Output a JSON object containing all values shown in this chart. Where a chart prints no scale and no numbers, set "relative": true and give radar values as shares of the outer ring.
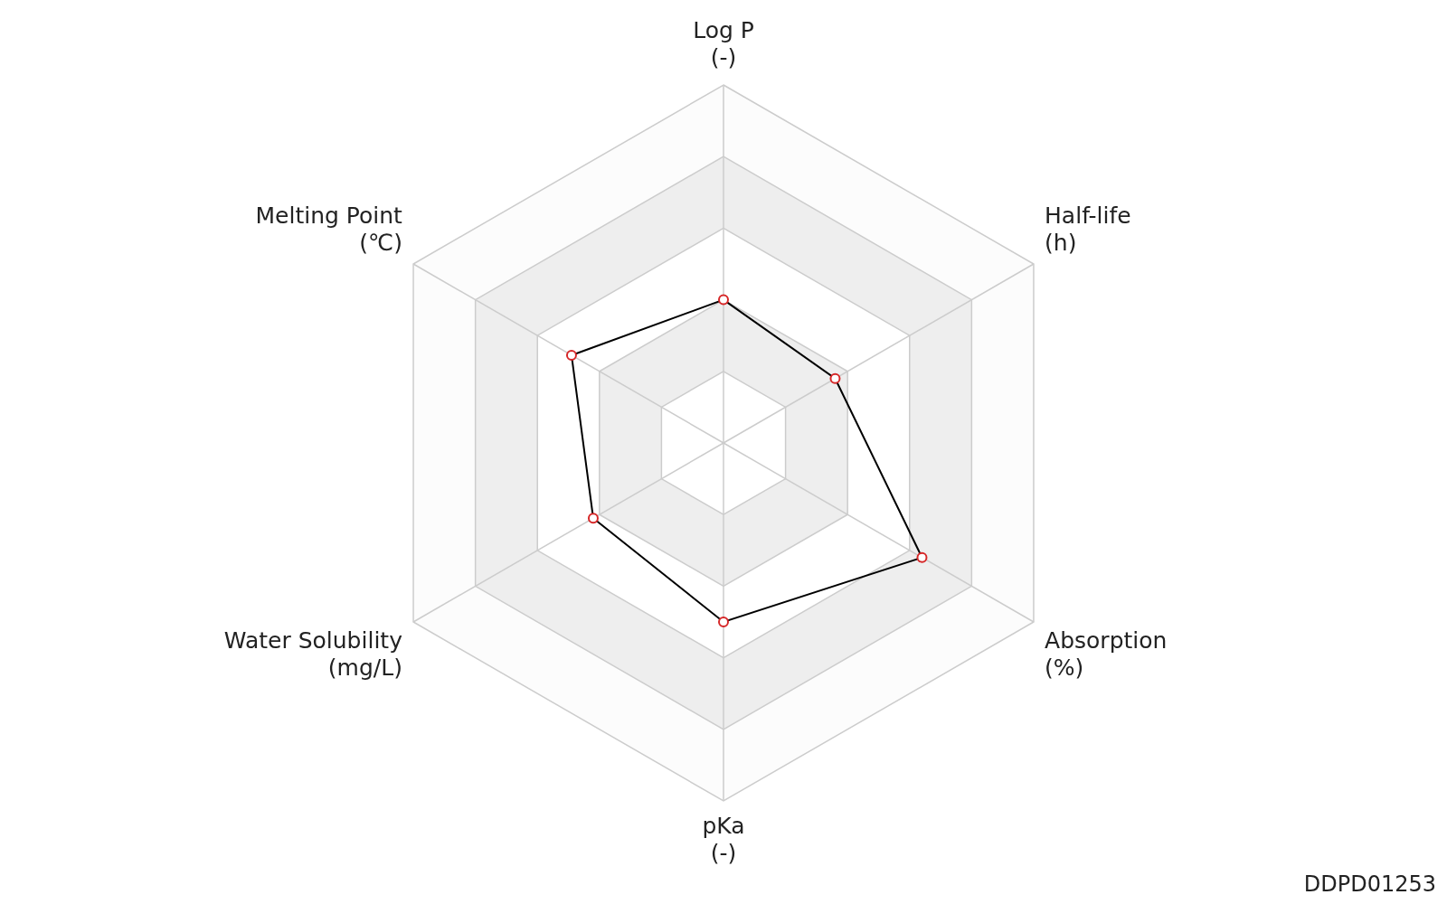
{
  "chart_data": {
    "type": "radar",
    "relative": true,
    "categories": [
      "Log P\n(-)",
      "Half-life\n(h)",
      "Absorption\n(%)",
      "pKa\n(-)",
      "Water Solubility\n(mg/L)",
      "Melting Point\n(℃)"
    ],
    "series": [
      {
        "color": "#000000",
        "values": [
          0.4,
          0.36,
          0.64,
          0.5,
          0.42,
          0.49
        ]
      }
    ],
    "marker": "circle",
    "legend": false,
    "annotations": [
      "DDPD01253"
    ]
  }
}
